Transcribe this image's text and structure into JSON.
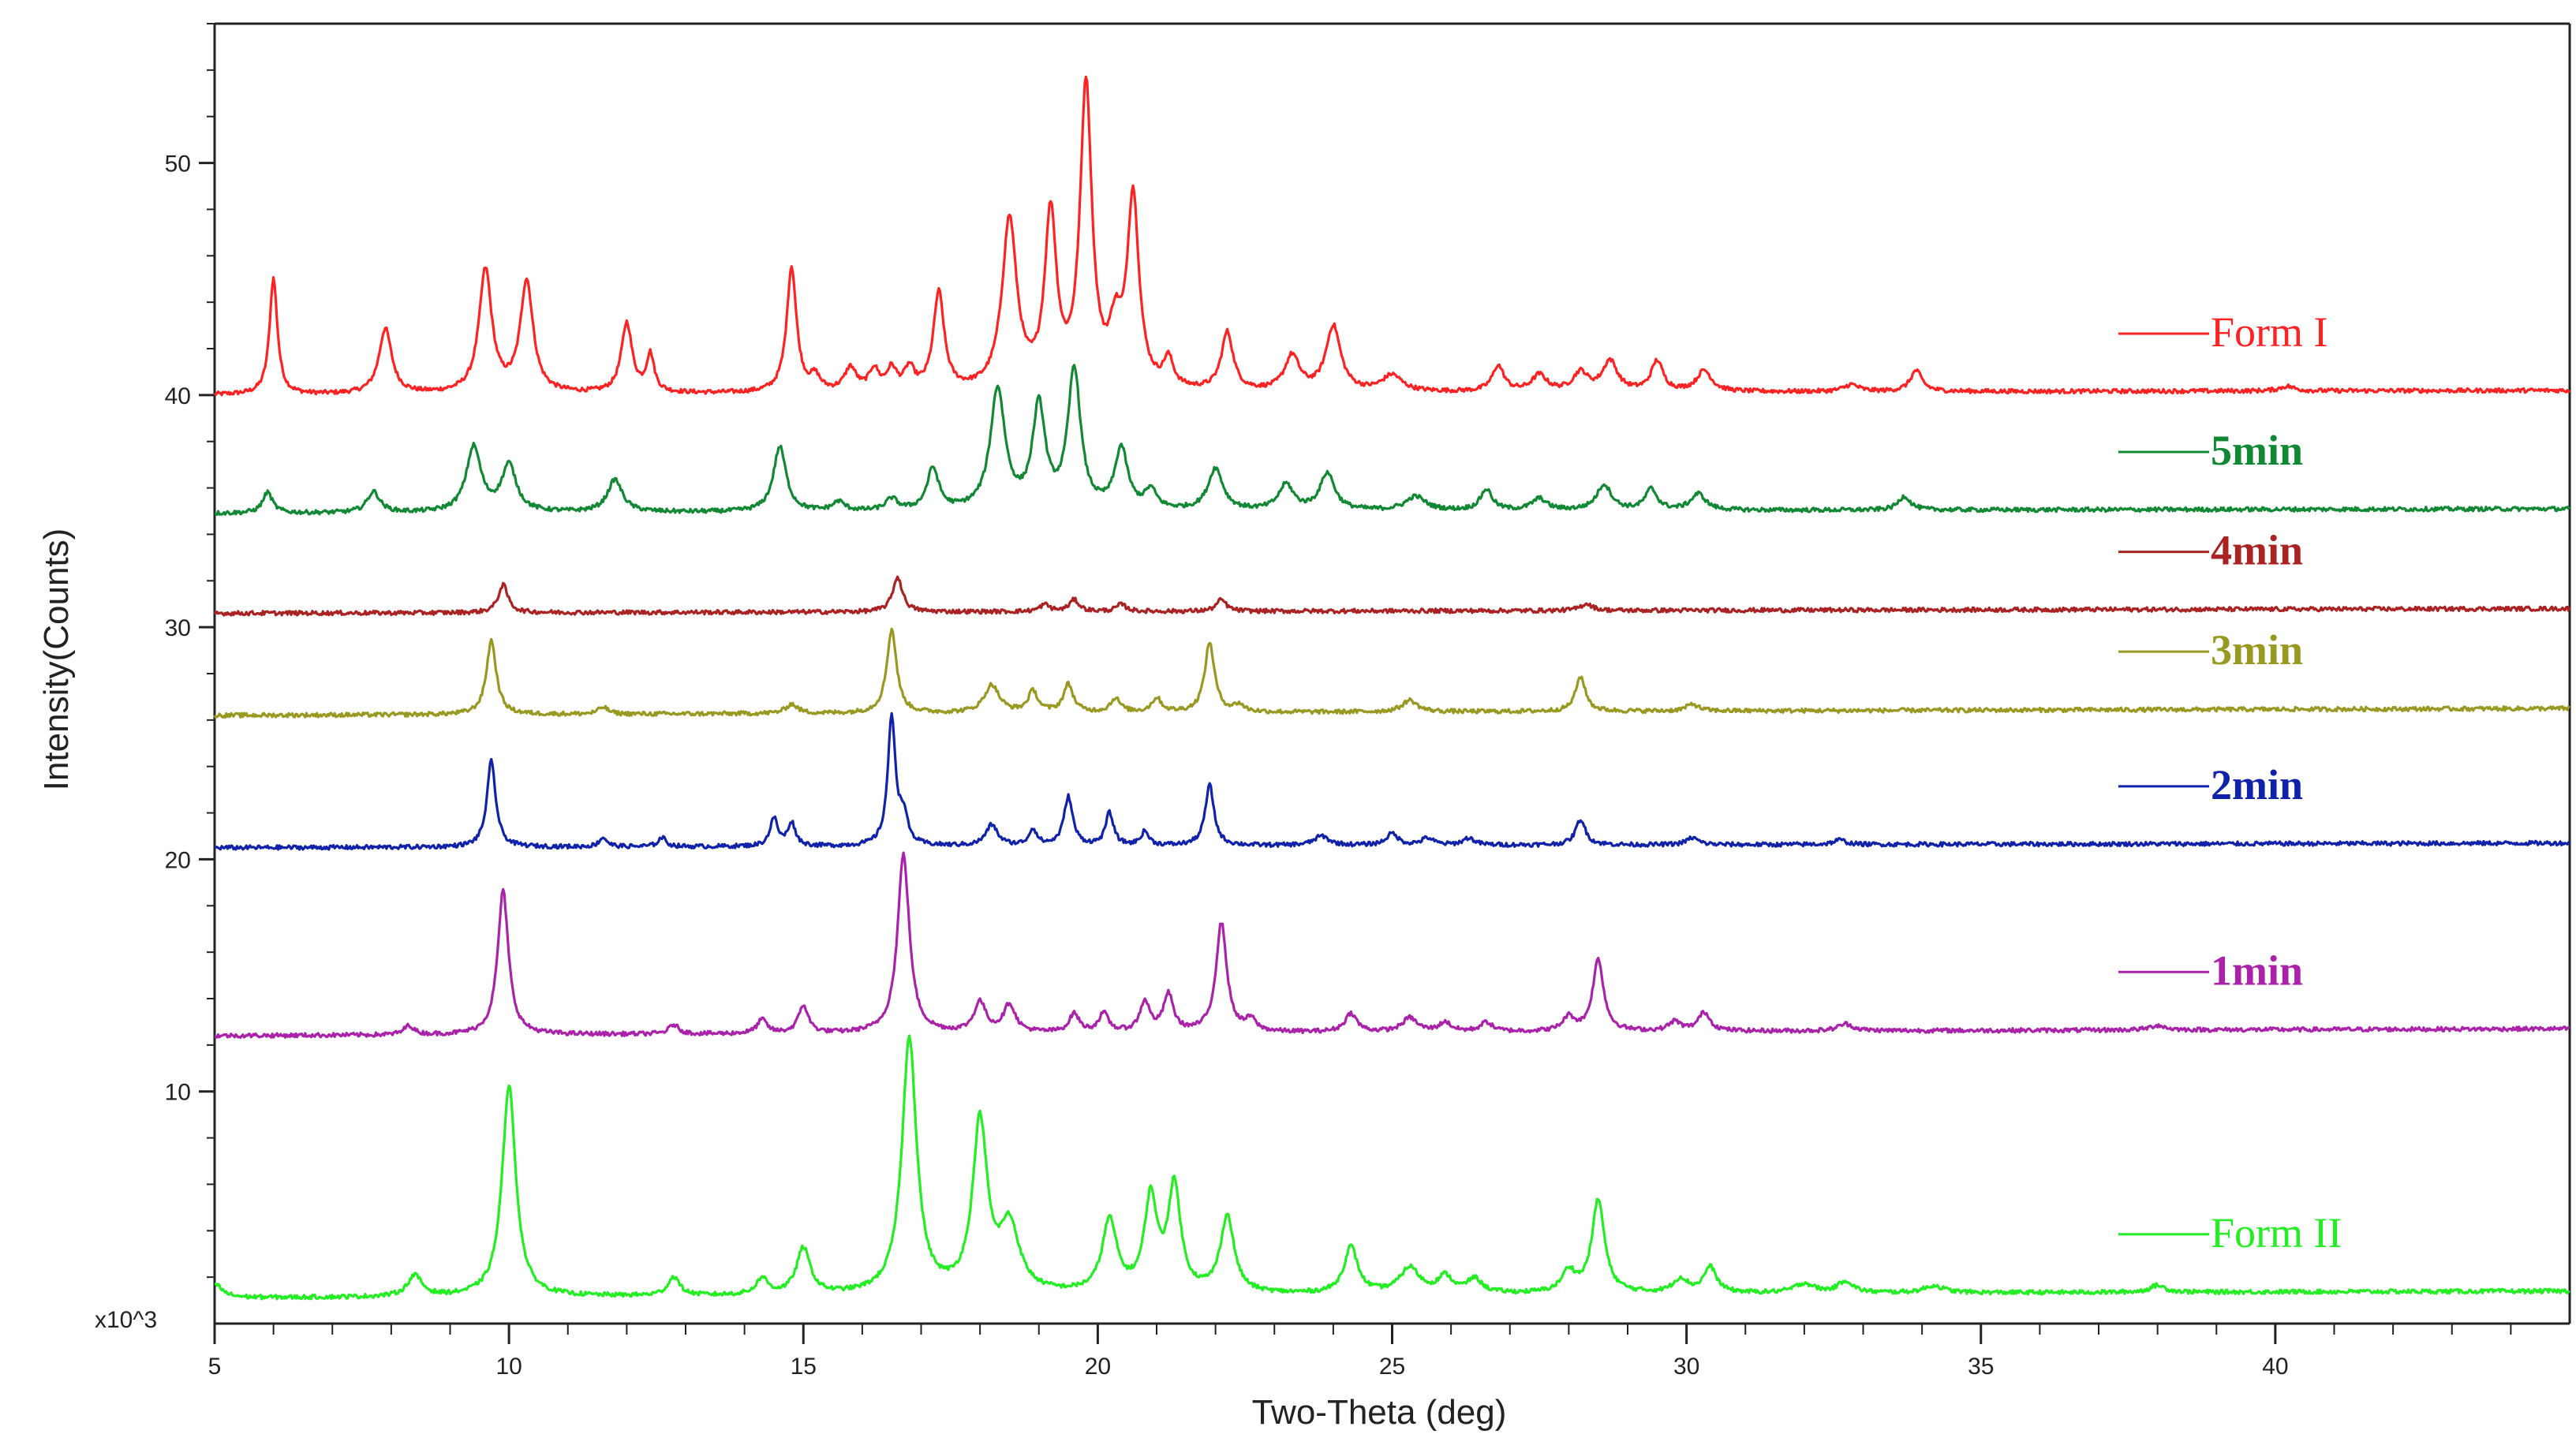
{
  "chart_data": {
    "type": "line",
    "xlabel": "Two-Theta (deg)",
    "ylabel": "Intensity(Counts)",
    "y_multiplier_label": "x10^3",
    "xlim": [
      5,
      45
    ],
    "ylim": [
      0,
      56
    ],
    "x_ticks_major": [
      5,
      10,
      15,
      20,
      25,
      30,
      35,
      40
    ],
    "y_ticks_major": [
      10,
      20,
      30,
      40,
      50
    ],
    "grid": false,
    "legend_placement": "right, inline labels",
    "series": [
      {
        "name": "Form I",
        "color": "#ff2222",
        "legend_bold": false,
        "baseline_start": 40.0,
        "baseline_end": 40.2,
        "peaks": [
          [
            6.0,
            5.0,
            0.08
          ],
          [
            7.9,
            2.8,
            0.13
          ],
          [
            9.6,
            5.3,
            0.13
          ],
          [
            10.3,
            4.8,
            0.13
          ],
          [
            12.0,
            3.0,
            0.11
          ],
          [
            12.4,
            1.6,
            0.08
          ],
          [
            14.8,
            5.4,
            0.1
          ],
          [
            15.2,
            0.6,
            0.1
          ],
          [
            15.8,
            1.0,
            0.12
          ],
          [
            16.2,
            0.9,
            0.1
          ],
          [
            16.5,
            0.9,
            0.1
          ],
          [
            16.8,
            0.9,
            0.1
          ],
          [
            17.3,
            4.2,
            0.11
          ],
          [
            18.5,
            7.3,
            0.15
          ],
          [
            19.2,
            7.4,
            0.12
          ],
          [
            19.8,
            13.0,
            0.12
          ],
          [
            20.3,
            2.2,
            0.12
          ],
          [
            20.6,
            8.2,
            0.12
          ],
          [
            21.2,
            1.2,
            0.1
          ],
          [
            22.2,
            2.5,
            0.12
          ],
          [
            23.3,
            1.5,
            0.15
          ],
          [
            24.0,
            2.8,
            0.15
          ],
          [
            25.0,
            0.7,
            0.2
          ],
          [
            26.8,
            1.1,
            0.12
          ],
          [
            27.5,
            0.7,
            0.15
          ],
          [
            28.2,
            0.8,
            0.15
          ],
          [
            28.7,
            1.3,
            0.15
          ],
          [
            29.5,
            1.3,
            0.12
          ],
          [
            30.3,
            0.9,
            0.15
          ],
          [
            32.8,
            0.3,
            0.15
          ],
          [
            33.9,
            0.9,
            0.12
          ],
          [
            40.2,
            0.2,
            0.15
          ]
        ]
      },
      {
        "name": "5min",
        "color": "#118833",
        "legend_bold": true,
        "baseline_start": 34.9,
        "baseline_end": 35.1,
        "peaks": [
          [
            5.9,
            0.9,
            0.1
          ],
          [
            7.7,
            0.9,
            0.13
          ],
          [
            9.4,
            2.8,
            0.15
          ],
          [
            10.0,
            2.0,
            0.15
          ],
          [
            11.8,
            1.4,
            0.15
          ],
          [
            14.6,
            2.8,
            0.13
          ],
          [
            15.6,
            0.4,
            0.12
          ],
          [
            16.5,
            0.5,
            0.12
          ],
          [
            17.2,
            1.8,
            0.12
          ],
          [
            18.3,
            5.2,
            0.15
          ],
          [
            19.0,
            4.4,
            0.13
          ],
          [
            19.6,
            6.0,
            0.13
          ],
          [
            20.4,
            2.6,
            0.13
          ],
          [
            20.9,
            0.8,
            0.12
          ],
          [
            22.0,
            1.8,
            0.15
          ],
          [
            23.2,
            1.1,
            0.15
          ],
          [
            23.9,
            1.6,
            0.15
          ],
          [
            25.4,
            0.6,
            0.2
          ],
          [
            26.6,
            0.9,
            0.12
          ],
          [
            27.5,
            0.5,
            0.15
          ],
          [
            28.6,
            1.1,
            0.15
          ],
          [
            29.4,
            0.9,
            0.12
          ],
          [
            30.2,
            0.7,
            0.15
          ],
          [
            33.7,
            0.6,
            0.12
          ]
        ]
      },
      {
        "name": "4min",
        "color": "#aa2222",
        "legend_bold": true,
        "baseline_start": 30.6,
        "baseline_end": 30.8,
        "peaks": [
          [
            9.9,
            1.2,
            0.1
          ],
          [
            16.6,
            1.5,
            0.1
          ],
          [
            19.1,
            0.3,
            0.1
          ],
          [
            19.6,
            0.5,
            0.1
          ],
          [
            20.4,
            0.3,
            0.1
          ],
          [
            22.1,
            0.5,
            0.1
          ],
          [
            28.3,
            0.3,
            0.12
          ]
        ]
      },
      {
        "name": "3min",
        "color": "#999922",
        "legend_bold": true,
        "baseline_start": 26.2,
        "baseline_end": 26.5,
        "peaks": [
          [
            9.7,
            3.2,
            0.1
          ],
          [
            11.6,
            0.3,
            0.1
          ],
          [
            14.8,
            0.4,
            0.12
          ],
          [
            16.5,
            3.6,
            0.1
          ],
          [
            18.2,
            1.2,
            0.15
          ],
          [
            18.9,
            0.9,
            0.1
          ],
          [
            19.5,
            1.2,
            0.1
          ],
          [
            20.3,
            0.6,
            0.1
          ],
          [
            21.0,
            0.6,
            0.1
          ],
          [
            21.9,
            3.0,
            0.1
          ],
          [
            22.4,
            0.3,
            0.1
          ],
          [
            25.3,
            0.5,
            0.15
          ],
          [
            28.2,
            1.5,
            0.1
          ],
          [
            30.1,
            0.3,
            0.12
          ]
        ]
      },
      {
        "name": "2min",
        "color": "#1122aa",
        "legend_bold": true,
        "baseline_start": 20.5,
        "baseline_end": 20.7,
        "peaks": [
          [
            9.7,
            3.7,
            0.09
          ],
          [
            11.6,
            0.4,
            0.08
          ],
          [
            12.6,
            0.4,
            0.08
          ],
          [
            14.5,
            1.2,
            0.08
          ],
          [
            14.8,
            1.0,
            0.08
          ],
          [
            16.5,
            5.5,
            0.08
          ],
          [
            16.7,
            1.2,
            0.08
          ],
          [
            18.2,
            0.9,
            0.12
          ],
          [
            18.9,
            0.7,
            0.08
          ],
          [
            19.5,
            2.1,
            0.09
          ],
          [
            20.2,
            1.4,
            0.08
          ],
          [
            20.8,
            0.6,
            0.08
          ],
          [
            21.9,
            2.6,
            0.09
          ],
          [
            23.8,
            0.4,
            0.15
          ],
          [
            25.0,
            0.5,
            0.12
          ],
          [
            25.6,
            0.3,
            0.12
          ],
          [
            26.3,
            0.3,
            0.12
          ],
          [
            28.2,
            1.1,
            0.1
          ],
          [
            30.1,
            0.3,
            0.12
          ],
          [
            32.6,
            0.2,
            0.12
          ]
        ]
      },
      {
        "name": "1min",
        "color": "#aa22aa",
        "legend_bold": true,
        "baseline_start": 12.4,
        "baseline_end": 12.7,
        "peaks": [
          [
            8.3,
            0.4,
            0.1
          ],
          [
            9.9,
            6.2,
            0.11
          ],
          [
            12.8,
            0.4,
            0.1
          ],
          [
            14.3,
            0.6,
            0.1
          ],
          [
            15.0,
            1.2,
            0.1
          ],
          [
            16.7,
            7.7,
            0.12
          ],
          [
            18.0,
            1.3,
            0.12
          ],
          [
            18.5,
            1.2,
            0.12
          ],
          [
            19.6,
            0.8,
            0.1
          ],
          [
            20.1,
            0.8,
            0.1
          ],
          [
            20.8,
            1.3,
            0.1
          ],
          [
            21.2,
            1.6,
            0.1
          ],
          [
            22.1,
            4.7,
            0.11
          ],
          [
            22.6,
            0.5,
            0.1
          ],
          [
            24.3,
            0.8,
            0.12
          ],
          [
            25.3,
            0.6,
            0.15
          ],
          [
            25.9,
            0.4,
            0.12
          ],
          [
            26.6,
            0.4,
            0.12
          ],
          [
            28.0,
            0.6,
            0.12
          ],
          [
            28.5,
            3.1,
            0.11
          ],
          [
            29.8,
            0.4,
            0.12
          ],
          [
            30.3,
            0.8,
            0.12
          ],
          [
            32.7,
            0.3,
            0.15
          ],
          [
            38.0,
            0.2,
            0.15
          ]
        ]
      },
      {
        "name": "Form II",
        "color": "#22ee22",
        "legend_bold": false,
        "baseline_start": 1.1,
        "baseline_end": 1.4,
        "peaks": [
          [
            5.0,
            0.6,
            0.15
          ],
          [
            8.4,
            0.9,
            0.15
          ],
          [
            10.0,
            9.1,
            0.14
          ],
          [
            12.8,
            0.8,
            0.12
          ],
          [
            14.3,
            0.7,
            0.12
          ],
          [
            15.0,
            2.0,
            0.14
          ],
          [
            16.8,
            11.0,
            0.15
          ],
          [
            18.0,
            7.3,
            0.15
          ],
          [
            18.5,
            2.8,
            0.2
          ],
          [
            20.2,
            3.1,
            0.15
          ],
          [
            20.9,
            4.0,
            0.13
          ],
          [
            21.3,
            4.5,
            0.13
          ],
          [
            22.2,
            3.3,
            0.14
          ],
          [
            24.3,
            2.0,
            0.14
          ],
          [
            25.3,
            1.1,
            0.2
          ],
          [
            25.9,
            0.7,
            0.15
          ],
          [
            26.4,
            0.6,
            0.15
          ],
          [
            28.0,
            0.9,
            0.14
          ],
          [
            28.5,
            4.0,
            0.13
          ],
          [
            29.9,
            0.6,
            0.15
          ],
          [
            30.4,
            1.1,
            0.13
          ],
          [
            32.0,
            0.4,
            0.2
          ],
          [
            32.7,
            0.5,
            0.15
          ],
          [
            34.2,
            0.3,
            0.2
          ],
          [
            38.0,
            0.3,
            0.15
          ]
        ]
      }
    ]
  }
}
